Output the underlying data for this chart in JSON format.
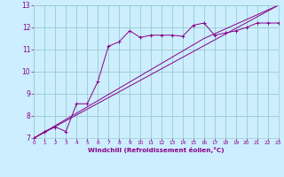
{
  "xlabel": "Windchill (Refroidissement éolien,°C)",
  "xlim": [
    0,
    23
  ],
  "ylim": [
    7,
    13
  ],
  "xticks": [
    0,
    1,
    2,
    3,
    4,
    5,
    6,
    7,
    8,
    9,
    10,
    11,
    12,
    13,
    14,
    15,
    16,
    17,
    18,
    19,
    20,
    21,
    22,
    23
  ],
  "yticks": [
    7,
    8,
    9,
    10,
    11,
    12,
    13
  ],
  "background_color": "#cceeff",
  "grid_color": "#99cccc",
  "line_color": "#880088",
  "series1_x": [
    0,
    1,
    2,
    3,
    4,
    5,
    6,
    7,
    8,
    9,
    10,
    11,
    12,
    13,
    14,
    15,
    16,
    17,
    18,
    19,
    20,
    21,
    22,
    23
  ],
  "series1_y": [
    7.0,
    7.3,
    7.5,
    7.3,
    8.55,
    8.55,
    9.55,
    11.15,
    11.35,
    11.85,
    11.55,
    11.65,
    11.65,
    11.65,
    11.6,
    12.1,
    12.2,
    11.65,
    11.75,
    11.85,
    12.0,
    12.2,
    12.2,
    12.2
  ],
  "series2_x": [
    0,
    23
  ],
  "series2_y": [
    7.0,
    13.0
  ],
  "series3_x": [
    0,
    16,
    23
  ],
  "series3_y": [
    7.0,
    11.5,
    13.0
  ]
}
